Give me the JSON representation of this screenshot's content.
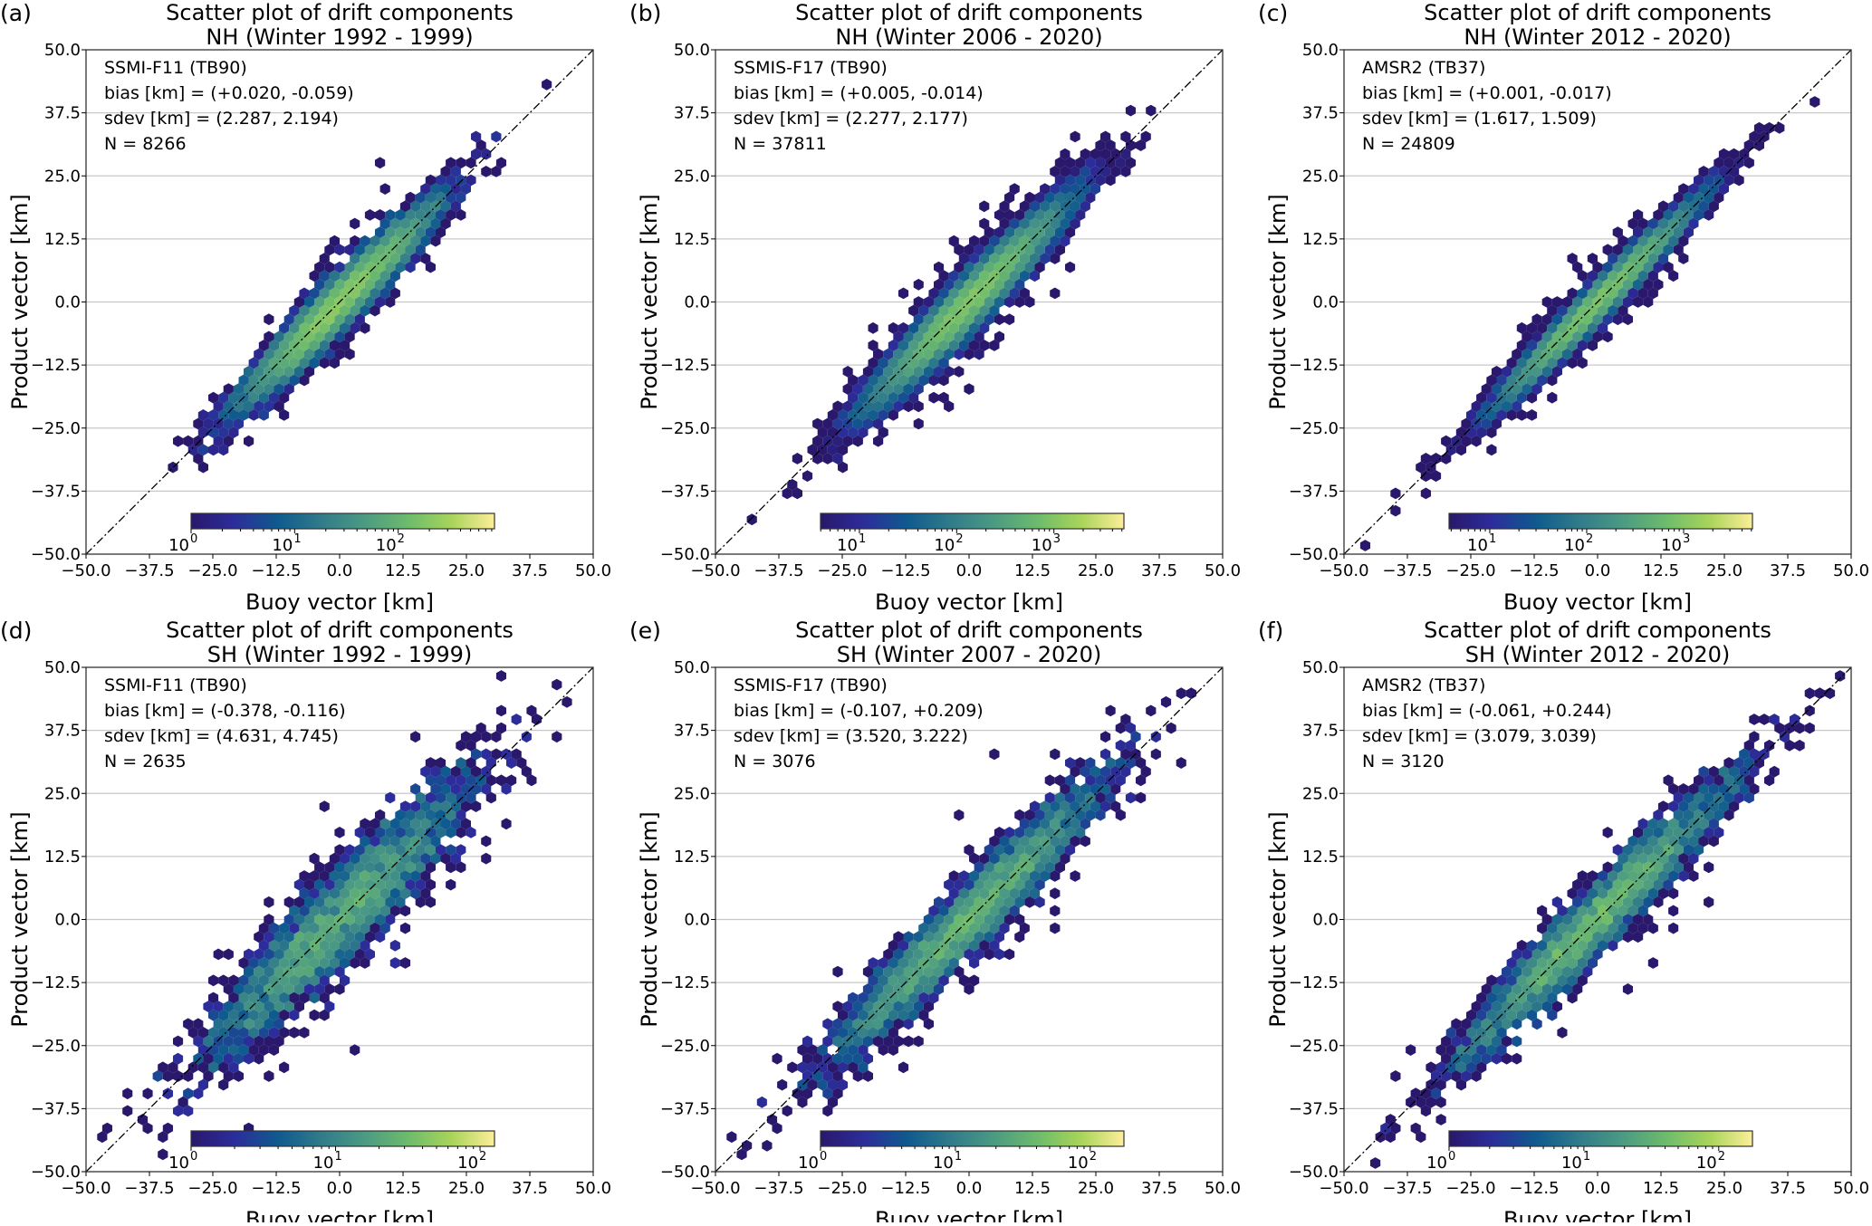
{
  "chart_data": [
    {
      "type": "heatmap",
      "label": "(a)",
      "title": "Scatter plot of drift components",
      "subtitle": "NH (Winter 1992 - 1999)",
      "sensor": "SSMI-F11 (TB90)",
      "bias": "bias [km] = (+0.020, -0.059)",
      "sdev": "sdev [km] = (2.287, 2.194)",
      "n": "N = 8266",
      "bias_values": [
        0.02,
        -0.059
      ],
      "sdev_values": [
        2.287,
        2.194
      ],
      "count": 8266,
      "hemisphere": "NH",
      "cbar_log_range": [
        0,
        2.93
      ],
      "cbar_ticks": [
        {
          "base": "10",
          "exp": "0",
          "log": 0
        },
        {
          "base": "10",
          "exp": "1",
          "log": 1
        },
        {
          "base": "10",
          "exp": "2",
          "log": 2
        }
      ],
      "xlabel": "Buoy vector [km]",
      "ylabel": "Product vector [km]",
      "xlim": [
        -50,
        50
      ],
      "ylim": [
        -50,
        50
      ]
    },
    {
      "type": "heatmap",
      "label": "(b)",
      "title": "Scatter plot of drift components",
      "subtitle": "NH (Winter 2006 - 2020)",
      "sensor": "SSMIS-F17 (TB90)",
      "bias": "bias [km] = (+0.005, -0.014)",
      "sdev": "sdev [km] = (2.277, 2.177)",
      "n": "N = 37811",
      "bias_values": [
        0.005,
        -0.014
      ],
      "sdev_values": [
        2.277,
        2.177
      ],
      "count": 37811,
      "hemisphere": "NH",
      "cbar_log_range": [
        0.6,
        3.72
      ],
      "cbar_ticks": [
        {
          "base": "10",
          "exp": "1",
          "log": 1
        },
        {
          "base": "10",
          "exp": "2",
          "log": 2
        },
        {
          "base": "10",
          "exp": "3",
          "log": 3
        }
      ],
      "xlabel": "Buoy vector [km]",
      "ylabel": "Product vector [km]",
      "xlim": [
        -50,
        50
      ],
      "ylim": [
        -50,
        50
      ]
    },
    {
      "type": "heatmap",
      "label": "(c)",
      "title": "Scatter plot of drift components",
      "subtitle": "NH (Winter 2012 - 2020)",
      "sensor": "AMSR2 (TB37)",
      "bias": "bias [km] = (+0.001, -0.017)",
      "sdev": "sdev [km] = (1.617, 1.509)",
      "n": "N = 24809",
      "bias_values": [
        0.001,
        -0.017
      ],
      "sdev_values": [
        1.617,
        1.509
      ],
      "count": 24809,
      "hemisphere": "NH",
      "cbar_log_range": [
        0.58,
        3.71
      ],
      "cbar_ticks": [
        {
          "base": "10",
          "exp": "1",
          "log": 1
        },
        {
          "base": "10",
          "exp": "2",
          "log": 2
        },
        {
          "base": "10",
          "exp": "3",
          "log": 3
        }
      ],
      "xlabel": "Buoy vector [km]",
      "ylabel": "Product vector [km]",
      "xlim": [
        -50,
        50
      ],
      "ylim": [
        -50,
        50
      ]
    },
    {
      "type": "heatmap",
      "label": "(d)",
      "title": "Scatter plot of drift components",
      "subtitle": "SH (Winter 1992 - 1999)",
      "sensor": "SSMI-F11 (TB90)",
      "bias": "bias [km] = (-0.378, -0.116)",
      "sdev": "sdev [km] = (4.631, 4.745)",
      "n": "N = 2635",
      "bias_values": [
        -0.378,
        -0.116
      ],
      "sdev_values": [
        4.631,
        4.745
      ],
      "count": 2635,
      "hemisphere": "SH",
      "cbar_log_range": [
        0,
        2.1
      ],
      "cbar_ticks": [
        {
          "base": "10",
          "exp": "0",
          "log": 0
        },
        {
          "base": "10",
          "exp": "1",
          "log": 1
        },
        {
          "base": "10",
          "exp": "2",
          "log": 2
        }
      ],
      "xlabel": "Buoy vector [km]",
      "ylabel": "Product vector [km]",
      "xlim": [
        -50,
        50
      ],
      "ylim": [
        -50,
        50
      ]
    },
    {
      "type": "heatmap",
      "label": "(e)",
      "title": "Scatter plot of drift components",
      "subtitle": "SH (Winter 2007 - 2020)",
      "sensor": "SSMIS-F17 (TB90)",
      "bias": "bias [km] = (-0.107, +0.209)",
      "sdev": "sdev [km] = (3.520, 3.222)",
      "n": "N = 3076",
      "bias_values": [
        -0.107,
        0.209
      ],
      "sdev_values": [
        3.52,
        3.222
      ],
      "count": 3076,
      "hemisphere": "SH",
      "cbar_log_range": [
        0,
        2.25
      ],
      "cbar_ticks": [
        {
          "base": "10",
          "exp": "0",
          "log": 0
        },
        {
          "base": "10",
          "exp": "1",
          "log": 1
        },
        {
          "base": "10",
          "exp": "2",
          "log": 2
        }
      ],
      "xlabel": "Buoy vector [km]",
      "ylabel": "Product vector [km]",
      "xlim": [
        -50,
        50
      ],
      "ylim": [
        -50,
        50
      ]
    },
    {
      "type": "heatmap",
      "label": "(f)",
      "title": "Scatter plot of drift components",
      "subtitle": "SH (Winter 2012 - 2020)",
      "sensor": "AMSR2 (TB37)",
      "bias": "bias [km] = (-0.061, +0.244)",
      "sdev": "sdev [km] = (3.079, 3.039)",
      "n": "N = 3120",
      "bias_values": [
        -0.061,
        0.244
      ],
      "sdev_values": [
        3.079,
        3.039
      ],
      "count": 3120,
      "hemisphere": "SH",
      "cbar_log_range": [
        0,
        2.25
      ],
      "cbar_ticks": [
        {
          "base": "10",
          "exp": "0",
          "log": 0
        },
        {
          "base": "10",
          "exp": "1",
          "log": 1
        },
        {
          "base": "10",
          "exp": "2",
          "log": 2
        }
      ],
      "xlabel": "Buoy vector [km]",
      "ylabel": "Product vector [km]",
      "xlim": [
        -50,
        50
      ],
      "ylim": [
        -50,
        50
      ]
    }
  ],
  "ticks": [
    "-50.0",
    "-37.5",
    "-25.0",
    "-12.5",
    "0.0",
    "12.5",
    "25.0",
    "37.5",
    "50.0"
  ],
  "tick_labels": [
    "−50.0",
    "−37.5",
    "−25.0",
    "−12.5",
    "0.0",
    "12.5",
    "25.0",
    "37.5",
    "50.0"
  ],
  "colormap": [
    "#29186b",
    "#2c2d9a",
    "#0f5a8e",
    "#317b8a",
    "#4b9a83",
    "#6dbb6c",
    "#a8d45a",
    "#fdee99"
  ]
}
